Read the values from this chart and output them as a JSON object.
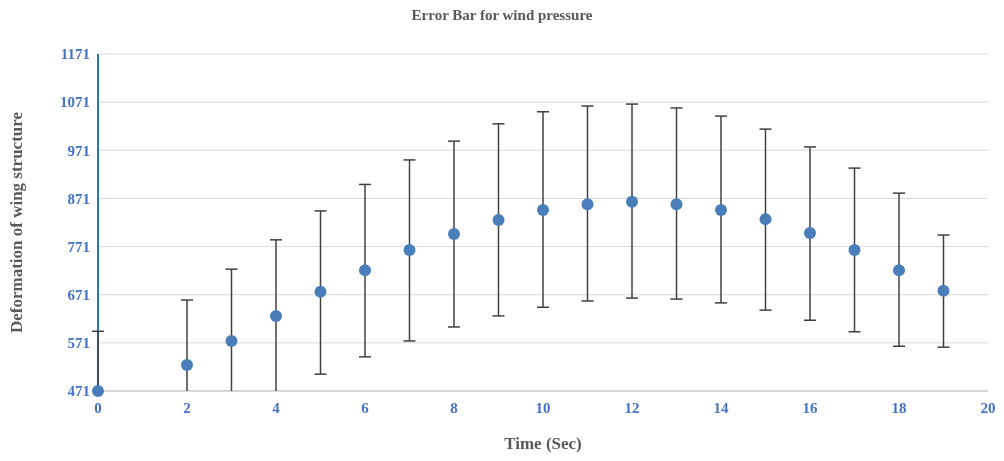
{
  "chart_data": {
    "type": "scatter",
    "title": "Error Bar for wind pressure",
    "xlabel": "Time (Sec)",
    "ylabel": "Deformation of wing  structure",
    "x": [
      0,
      2,
      3,
      4,
      5,
      6,
      7,
      8,
      9,
      10,
      11,
      12,
      13,
      14,
      15,
      16,
      17,
      18,
      19
    ],
    "values": [
      471,
      525,
      575,
      627,
      677,
      722,
      764,
      797,
      826,
      847,
      859,
      864,
      859,
      847,
      828,
      799,
      764,
      722,
      679
    ],
    "errors": [
      [
        471,
        595
      ],
      [
        471,
        660
      ],
      [
        471,
        724
      ],
      [
        471,
        785
      ],
      [
        506,
        845
      ],
      [
        542,
        900
      ],
      [
        575,
        951
      ],
      [
        604,
        990
      ],
      [
        627,
        1026
      ],
      [
        645,
        1051
      ],
      [
        658,
        1063
      ],
      [
        664,
        1067
      ],
      [
        662,
        1059
      ],
      [
        654,
        1042
      ],
      [
        639,
        1015
      ],
      [
        618,
        978
      ],
      [
        594,
        934
      ],
      [
        564,
        882
      ],
      [
        562,
        795
      ]
    ],
    "color": "#4a7ebb",
    "marker": "circle",
    "xlim": [
      0,
      20
    ],
    "xticks": [
      0,
      2,
      4,
      6,
      8,
      10,
      12,
      14,
      16,
      18,
      20
    ],
    "ylim": [
      471,
      1171
    ],
    "yticks": [
      471,
      571,
      671,
      771,
      871,
      971,
      1071,
      1171
    ],
    "grid": "y"
  }
}
